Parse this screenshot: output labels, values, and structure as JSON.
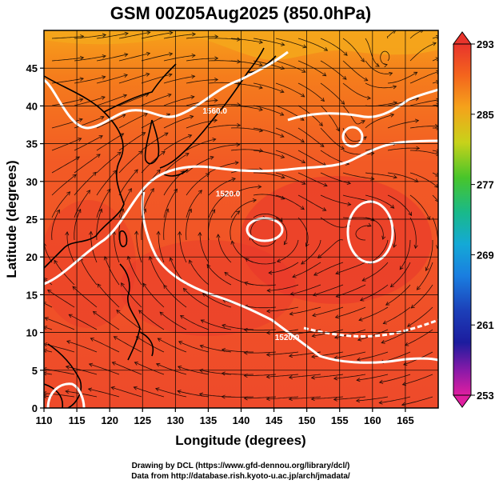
{
  "title": "GSM 00Z05Aug2025 (850.0hPa)",
  "xlabel": "Longitude (degrees)",
  "ylabel": "Latitude  (degrees)",
  "credits": [
    "Drawing by DCL (https://www.gfd-dennou.org/library/dcl/)",
    "Data from http://database.rish.kyoto-u.ac.jp/arch/jmadata/"
  ],
  "colors": {
    "warm_fill": "#f45a1c",
    "hot_core": "#e8342c",
    "north_fill": "#f6a21a",
    "contour": "#ffffff",
    "coastline": "#000000",
    "streamline": "#000000"
  },
  "map": {
    "lon_range": [
      110,
      170
    ],
    "lat_range": [
      0,
      50
    ],
    "x_ticks": [
      110,
      115,
      120,
      125,
      130,
      135,
      140,
      145,
      150,
      155,
      160,
      165
    ],
    "y_ticks": [
      0,
      5,
      10,
      15,
      20,
      25,
      30,
      35,
      40,
      45
    ],
    "grid": true,
    "contour_labels": [
      {
        "text": "1560.0",
        "lon": 136,
        "lat": 39
      },
      {
        "text": "1520.0",
        "lon": 138,
        "lat": 28
      },
      {
        "text": "1520.0",
        "lon": 147,
        "lat": 9
      }
    ]
  },
  "colorbar": {
    "ticks": [
      "293",
      "285",
      "277",
      "269",
      "261",
      "253"
    ],
    "range": [
      253,
      293
    ]
  }
}
